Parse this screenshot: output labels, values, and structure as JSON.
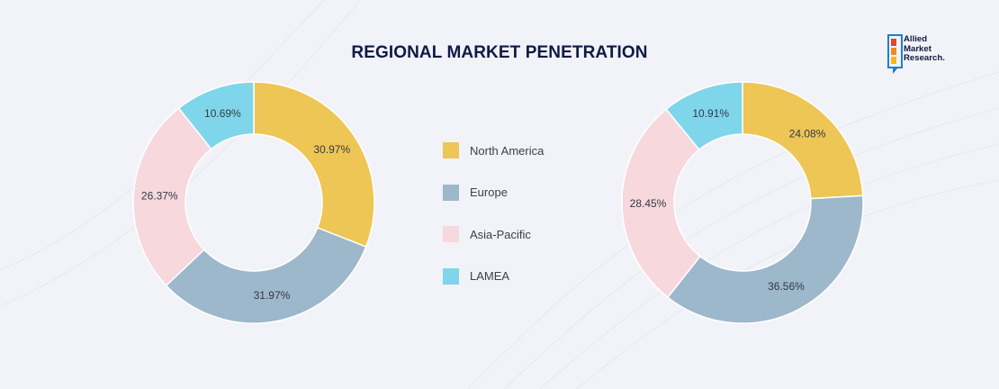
{
  "header": {
    "title": "REGIONAL MARKET PENETRATION"
  },
  "logo": {
    "line1": "Allied",
    "line2": "Market",
    "line3": "Research."
  },
  "colors": {
    "North America": "#eec655",
    "Europe": "#9db7cb",
    "Asia-Pacific": "#f7d8dc",
    "LAMEA": "#7fd6ea"
  },
  "legend": [
    {
      "label": "North America"
    },
    {
      "label": "Europe"
    },
    {
      "label": "Asia-Pacific"
    },
    {
      "label": "LAMEA"
    }
  ],
  "chart_data": [
    {
      "type": "pie",
      "donut": true,
      "categories": [
        "North America",
        "Europe",
        "Asia-Pacific",
        "LAMEA"
      ],
      "values": [
        30.97,
        31.97,
        26.37,
        10.69
      ],
      "labels": [
        "30.97%",
        "31.97%",
        "26.37%",
        "10.69%"
      ]
    },
    {
      "type": "pie",
      "donut": true,
      "categories": [
        "North America",
        "Europe",
        "Asia-Pacific",
        "LAMEA"
      ],
      "values": [
        24.08,
        36.56,
        28.45,
        10.91
      ],
      "labels": [
        "24.08%",
        "36.56%",
        "28.45%",
        "10.91%"
      ]
    }
  ]
}
